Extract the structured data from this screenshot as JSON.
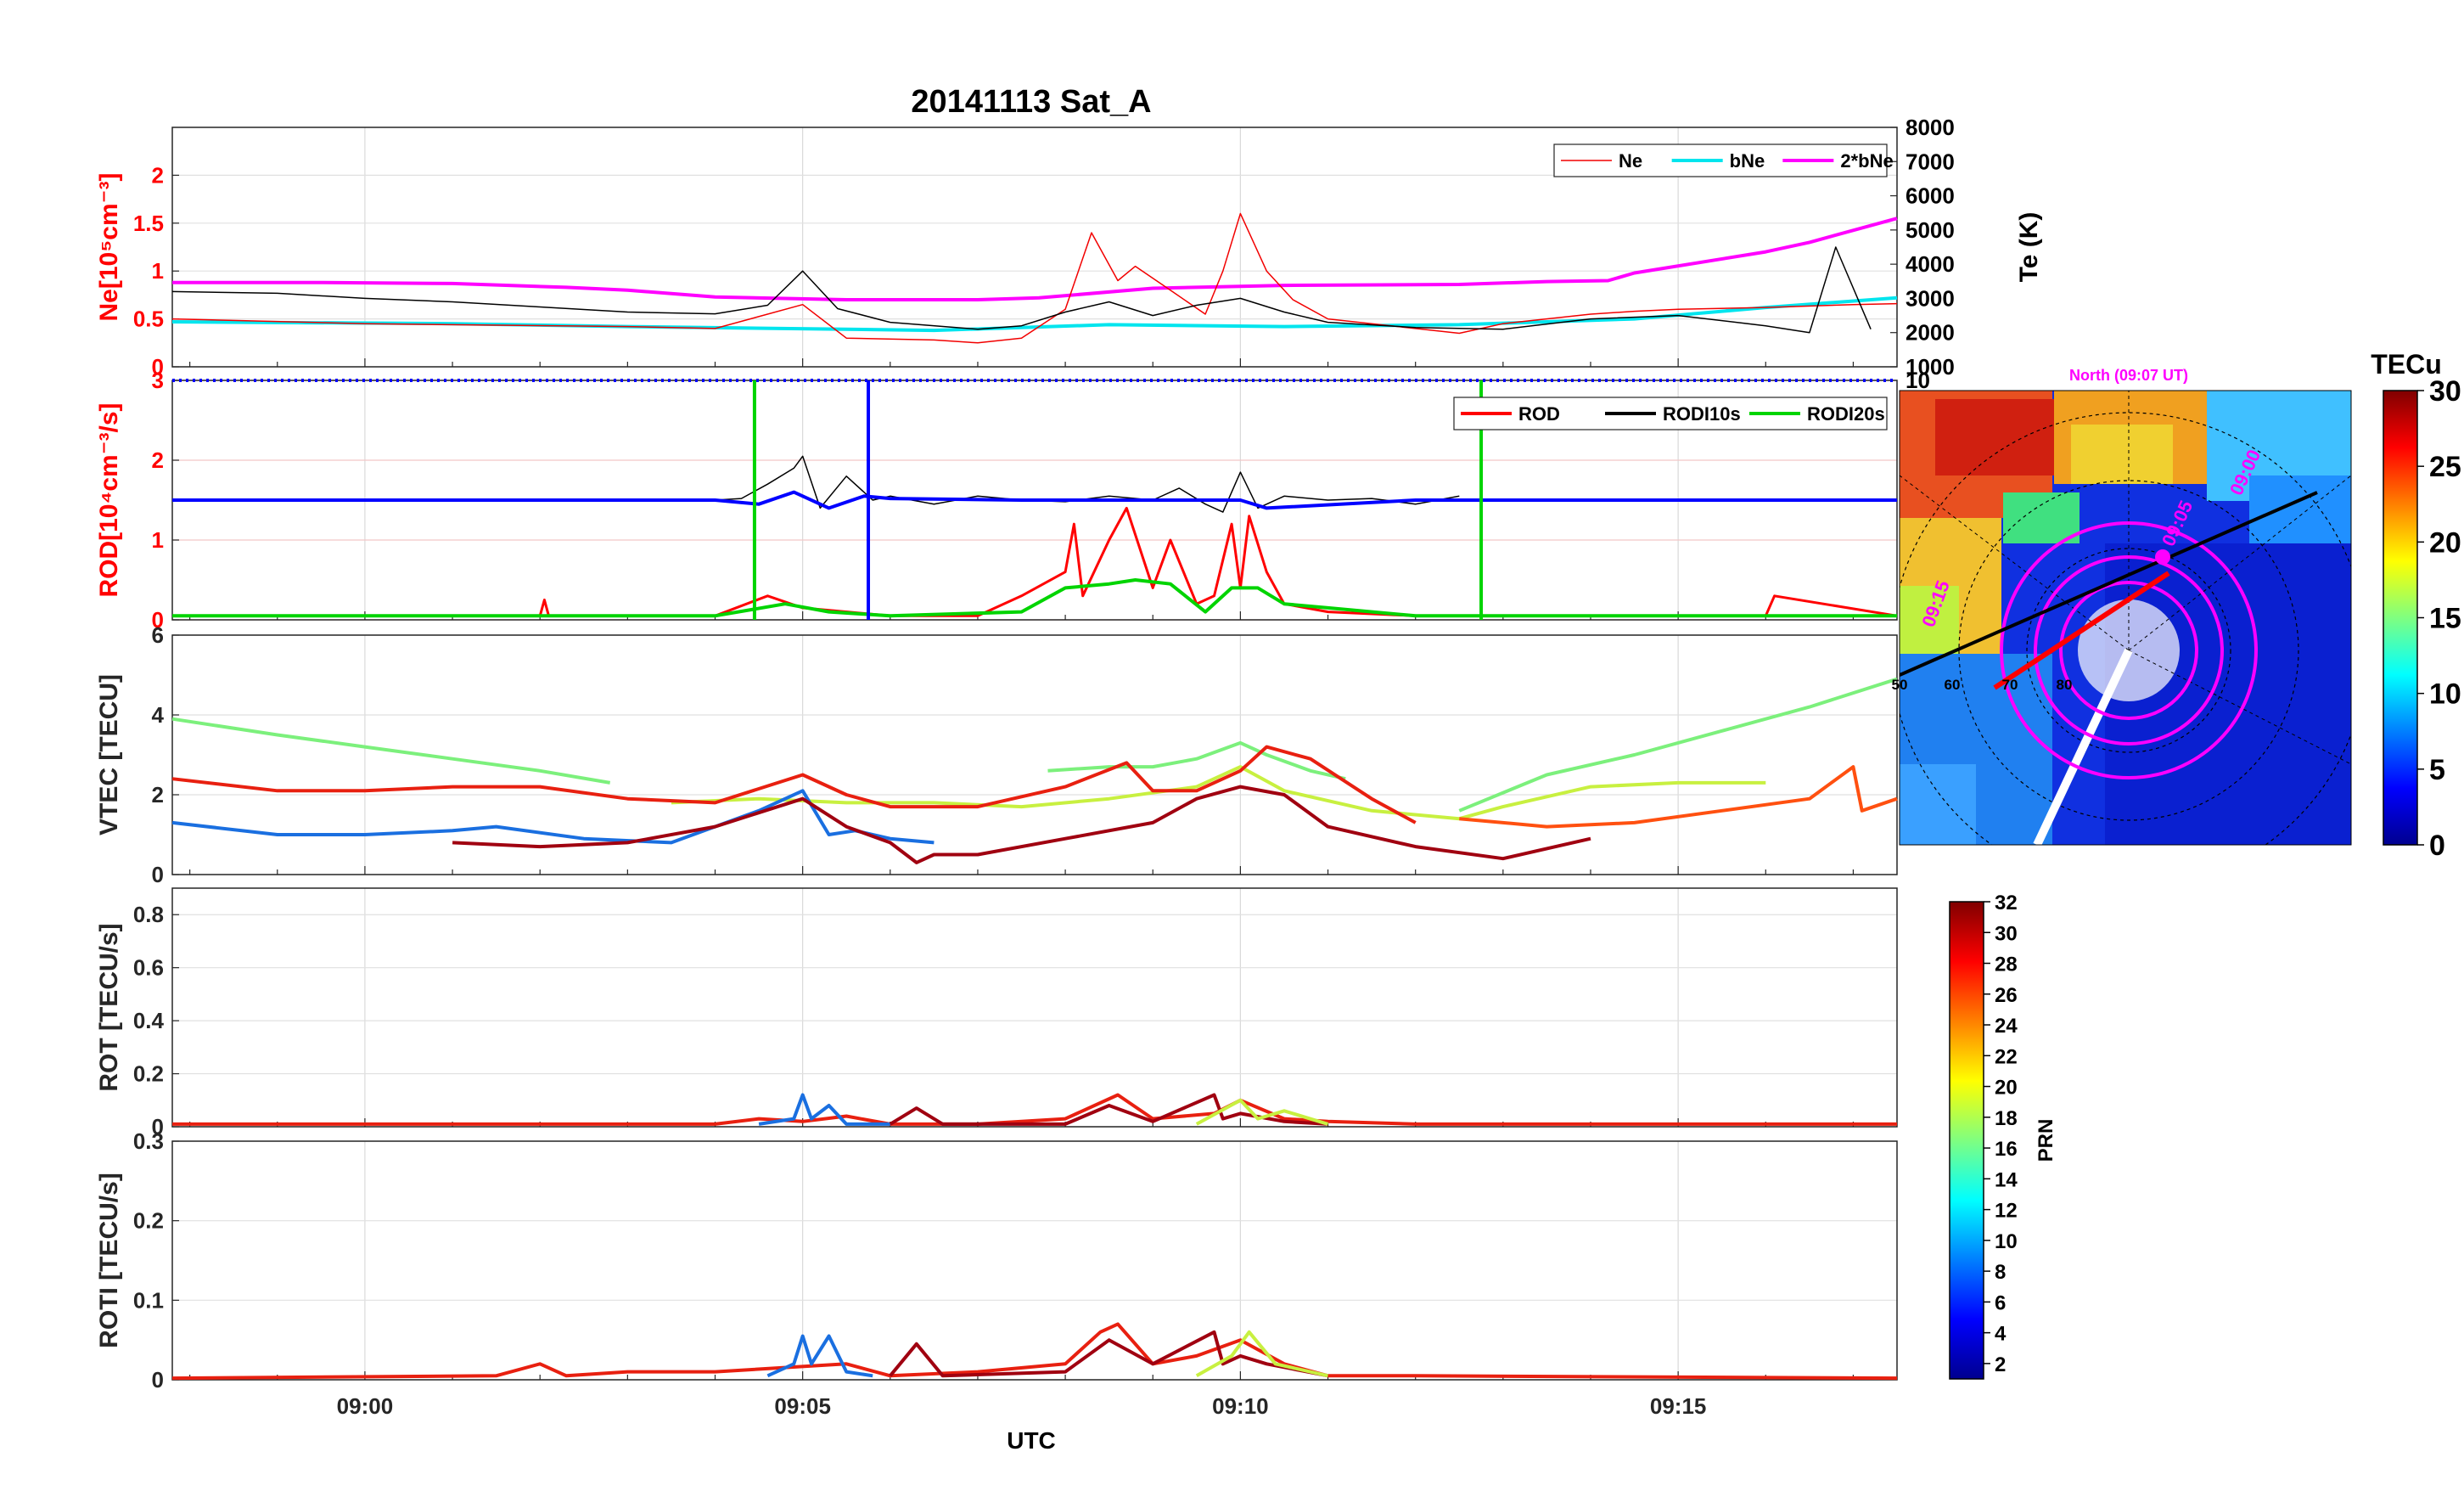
{
  "figure": {
    "title": "20141113  Sat_A",
    "xlabel": "UTC",
    "xticks": [
      "09:00",
      "09:05",
      "09:10",
      "09:15"
    ]
  },
  "colors": {
    "ne": "#f20000",
    "bne": "#00e5ee",
    "two_bne": "#ff00ff",
    "te": "#000000",
    "rod": "#ff0000",
    "rodi10": "#000000",
    "rodi20": "#00d400",
    "blue": "#0000ff"
  },
  "chart_data": [
    {
      "id": "ne",
      "type": "line",
      "ylabel": "Ne[10⁵cm⁻³]",
      "ylim": [
        0,
        2.5
      ],
      "yticks": [
        "0",
        "0.5",
        "1",
        "1.5",
        "2"
      ],
      "y2label": "Te (K)",
      "y2lim": [
        1000,
        8000
      ],
      "y2ticks": [
        "1000",
        "2000",
        "3000",
        "4000",
        "5000",
        "6000",
        "7000",
        "8000"
      ],
      "legend": [
        "Ne",
        "bNe",
        "2*bNe"
      ],
      "series": [
        {
          "name": "2*bNe",
          "x": [
            -2.2,
            -0.5,
            1.0,
            2.3,
            3.0,
            4.0,
            5.5,
            7.0,
            7.7,
            9.0,
            10.5,
            12.5,
            13.5,
            14.2,
            14.5,
            16.0,
            16.5,
            17.5
          ],
          "y": [
            0.88,
            0.88,
            0.87,
            0.83,
            0.8,
            0.73,
            0.7,
            0.7,
            0.72,
            0.82,
            0.85,
            0.86,
            0.89,
            0.9,
            0.98,
            1.2,
            1.3,
            1.55
          ]
        },
        {
          "name": "bNe",
          "x": [
            -2.2,
            1.0,
            3.0,
            6.5,
            8.5,
            10.5,
            12.5,
            14.5,
            16.0,
            17.5
          ],
          "y": [
            0.47,
            0.45,
            0.42,
            0.38,
            0.44,
            0.42,
            0.44,
            0.5,
            0.62,
            0.72
          ]
        },
        {
          "name": "Ne",
          "x": [
            -2.2,
            0.0,
            2.0,
            3.0,
            4.0,
            5.0,
            5.5,
            6.5,
            7.0,
            7.5,
            8.0,
            8.3,
            8.6,
            8.8,
            9.2,
            9.6,
            9.8,
            10.0,
            10.3,
            10.6,
            11.0,
            12.0,
            12.5,
            13.0,
            14.0,
            14.5,
            15.0,
            16.0,
            17.0,
            17.5
          ],
          "y": [
            0.5,
            0.45,
            0.43,
            0.42,
            0.4,
            0.65,
            0.3,
            0.28,
            0.25,
            0.3,
            0.6,
            1.4,
            0.9,
            1.05,
            0.8,
            0.55,
            1.0,
            1.6,
            1.0,
            0.7,
            0.5,
            0.4,
            0.35,
            0.45,
            0.55,
            0.58,
            0.6,
            0.62,
            0.65,
            0.66
          ]
        },
        {
          "name": "Te",
          "axis": "y2",
          "x": [
            -2.2,
            -1.0,
            0.0,
            1.0,
            2.0,
            3.0,
            4.0,
            4.6,
            5.0,
            5.4,
            6.0,
            7.0,
            7.5,
            8.0,
            8.5,
            9.0,
            9.5,
            10.0,
            10.5,
            11.0,
            12.0,
            13.0,
            14.0,
            15.0,
            16.0,
            16.5,
            16.8,
            17.2
          ],
          "y": [
            3200,
            3150,
            3000,
            2900,
            2750,
            2600,
            2550,
            2800,
            3800,
            2700,
            2300,
            2100,
            2200,
            2600,
            2900,
            2500,
            2800,
            3000,
            2600,
            2300,
            2150,
            2100,
            2400,
            2500,
            2200,
            2000,
            4500,
            2100
          ]
        }
      ]
    },
    {
      "id": "rod",
      "type": "line",
      "ylabel": "ROD[10⁴cm⁻³/s]",
      "ylim": [
        0,
        3
      ],
      "yticks": [
        "0",
        "1",
        "2",
        "3"
      ],
      "y2ticks": [
        "10"
      ],
      "legend": [
        "ROD",
        "RODI10s",
        "RODI20s"
      ],
      "spikes_x": [
        4.45,
        5.75,
        12.75
      ],
      "series": [
        {
          "name": "ROD",
          "x": [
            -2.2,
            2.0,
            2.05,
            2.1,
            4.0,
            4.6,
            5.0,
            6.0,
            7.0,
            7.5,
            8.0,
            8.1,
            8.2,
            8.5,
            8.7,
            9.0,
            9.2,
            9.5,
            9.7,
            9.9,
            10.0,
            10.1,
            10.3,
            10.5,
            11.0,
            12.0,
            16.0,
            16.1,
            17.5
          ],
          "y": [
            0.05,
            0.05,
            0.25,
            0.05,
            0.05,
            0.3,
            0.15,
            0.05,
            0.05,
            0.3,
            0.6,
            1.2,
            0.3,
            1.0,
            1.4,
            0.4,
            1.0,
            0.2,
            0.3,
            1.2,
            0.4,
            1.3,
            0.6,
            0.2,
            0.1,
            0.05,
            0.05,
            0.3,
            0.05
          ]
        },
        {
          "name": "RODI10s",
          "x": [
            4.0,
            4.3,
            4.6,
            4.9,
            5.0,
            5.2,
            5.5,
            5.8,
            6.0,
            6.5,
            7.0,
            7.5,
            8.0,
            8.5,
            9.0,
            9.3,
            9.6,
            9.8,
            10.0,
            10.2,
            10.5,
            11.0,
            11.5,
            12.0,
            12.5
          ],
          "y": [
            1.5,
            1.52,
            1.7,
            1.9,
            2.05,
            1.4,
            1.8,
            1.5,
            1.55,
            1.45,
            1.55,
            1.5,
            1.48,
            1.55,
            1.5,
            1.65,
            1.45,
            1.35,
            1.85,
            1.4,
            1.55,
            1.5,
            1.52,
            1.45,
            1.55
          ]
        },
        {
          "name": "RODI20s",
          "x": [
            -2.2,
            2.0,
            4.0,
            4.8,
            5.3,
            6.0,
            7.5,
            8.0,
            8.5,
            8.8,
            9.2,
            9.6,
            9.9,
            10.2,
            10.5,
            11.0,
            12.0,
            17.5
          ],
          "y": [
            0.05,
            0.05,
            0.05,
            0.2,
            0.1,
            0.05,
            0.1,
            0.4,
            0.45,
            0.5,
            0.45,
            0.1,
            0.4,
            0.4,
            0.2,
            0.15,
            0.05,
            0.05
          ]
        },
        {
          "name": "blue",
          "x": [
            -2.2,
            4.0,
            4.5,
            4.9,
            5.3,
            5.7,
            6.0,
            7.5,
            8.0,
            10.0,
            10.3,
            12.0,
            17.5
          ],
          "y": [
            1.5,
            1.5,
            1.45,
            1.6,
            1.4,
            1.55,
            1.52,
            1.5,
            1.5,
            1.5,
            1.4,
            1.5,
            1.5
          ]
        }
      ]
    },
    {
      "id": "vtec",
      "type": "line",
      "ylabel": "VTEC [TECU]",
      "ylim": [
        0,
        6
      ],
      "yticks": [
        "0",
        "2",
        "4",
        "6"
      ],
      "series": [
        {
          "name": "light-green",
          "color": "#7cf07c",
          "x": [
            -2.2,
            -1.0,
            0.0,
            1.0,
            2.0,
            2.8
          ],
          "y": [
            3.9,
            3.5,
            3.2,
            2.9,
            2.6,
            2.3
          ]
        },
        {
          "name": "light-green-2",
          "color": "#7cf07c",
          "x": [
            7.8,
            8.5,
            9.0,
            9.5,
            10.0,
            10.3,
            10.8,
            11.2
          ],
          "y": [
            2.6,
            2.7,
            2.7,
            2.9,
            3.3,
            3.0,
            2.6,
            2.4
          ]
        },
        {
          "name": "light-green-3",
          "color": "#7cf07c",
          "x": [
            12.5,
            13.5,
            14.5,
            15.5,
            16.5,
            17.5
          ],
          "y": [
            1.6,
            2.5,
            3.0,
            3.6,
            4.2,
            4.9
          ]
        },
        {
          "name": "yellow-green",
          "color": "#c8f040",
          "x": [
            3.5,
            4.5,
            5.5,
            6.5,
            7.5,
            8.5,
            9.5,
            10.0,
            10.5,
            11.5,
            12.5,
            13.0,
            14.0,
            15.0,
            16.0
          ],
          "y": [
            1.8,
            1.9,
            1.8,
            1.8,
            1.7,
            1.9,
            2.2,
            2.7,
            2.1,
            1.6,
            1.4,
            1.7,
            2.2,
            2.3,
            2.3
          ]
        },
        {
          "name": "red",
          "color": "#e82010",
          "x": [
            -2.2,
            -1.0,
            0.0,
            1.0,
            2.0,
            3.0,
            4.0,
            5.0,
            5.5,
            6.0,
            7.0,
            8.0,
            8.7,
            9.0,
            9.5,
            10.0,
            10.3,
            10.8,
            11.5,
            12.0
          ],
          "y": [
            2.4,
            2.1,
            2.1,
            2.2,
            2.2,
            1.9,
            1.8,
            2.5,
            2.0,
            1.7,
            1.7,
            2.2,
            2.8,
            2.1,
            2.1,
            2.6,
            3.2,
            2.9,
            1.9,
            1.3
          ]
        },
        {
          "name": "orange-red",
          "color": "#ff5010",
          "x": [
            12.5,
            13.5,
            14.5,
            15.5,
            16.5,
            17.0,
            17.1,
            17.5
          ],
          "y": [
            1.4,
            1.2,
            1.3,
            1.6,
            1.9,
            2.7,
            1.6,
            1.9
          ]
        },
        {
          "name": "blue",
          "color": "#1a6fe0",
          "x": [
            -2.2,
            -1.0,
            0.0,
            1.0,
            1.5,
            2.5,
            3.5,
            4.5,
            5.0,
            5.3,
            5.6,
            6.0,
            6.5
          ],
          "y": [
            1.3,
            1.0,
            1.0,
            1.1,
            1.2,
            0.9,
            0.8,
            1.6,
            2.1,
            1.0,
            1.1,
            0.9,
            0.8
          ]
        },
        {
          "name": "dark-red",
          "color": "#a00010",
          "x": [
            1.0,
            2.0,
            3.0,
            4.0,
            5.0,
            5.5,
            6.0,
            6.3,
            6.5,
            7.0,
            8.0,
            9.0,
            9.5,
            10.0,
            10.5,
            11.0,
            12.0,
            13.0,
            14.0
          ],
          "y": [
            0.8,
            0.7,
            0.8,
            1.2,
            1.9,
            1.2,
            0.8,
            0.3,
            0.5,
            0.5,
            0.9,
            1.3,
            1.9,
            2.2,
            2.0,
            1.2,
            0.7,
            0.4,
            0.9
          ]
        }
      ]
    },
    {
      "id": "rot",
      "type": "line",
      "ylabel": "ROT [TECU/s]",
      "ylim": [
        0,
        0.9
      ],
      "yticks": [
        "0",
        "0.2",
        "0.4",
        "0.6",
        "0.8"
      ],
      "series": [
        {
          "name": "red",
          "color": "#e82010",
          "x": [
            -2.2,
            4.0,
            4.5,
            5.0,
            5.5,
            6.0,
            7.0,
            8.0,
            8.6,
            9.0,
            9.7,
            10.0,
            10.5,
            11.0,
            12.0,
            17.5
          ],
          "y": [
            0.01,
            0.01,
            0.03,
            0.02,
            0.04,
            0.01,
            0.01,
            0.03,
            0.12,
            0.03,
            0.05,
            0.1,
            0.03,
            0.02,
            0.01,
            0.01
          ]
        },
        {
          "name": "blue",
          "color": "#1a6fe0",
          "x": [
            4.5,
            4.9,
            5.0,
            5.1,
            5.3,
            5.5,
            6.0
          ],
          "y": [
            0.01,
            0.03,
            0.12,
            0.03,
            0.08,
            0.01,
            0.01
          ]
        },
        {
          "name": "dark-red",
          "color": "#a00010",
          "x": [
            6.0,
            6.3,
            6.6,
            8.0,
            8.5,
            9.0,
            9.7,
            9.8,
            10.0,
            10.5,
            11.0
          ],
          "y": [
            0.01,
            0.07,
            0.01,
            0.01,
            0.08,
            0.02,
            0.12,
            0.03,
            0.05,
            0.02,
            0.01
          ]
        },
        {
          "name": "yellow-green",
          "color": "#c8f040",
          "x": [
            9.5,
            10.0,
            10.2,
            10.5,
            11.0
          ],
          "y": [
            0.01,
            0.1,
            0.03,
            0.06,
            0.01
          ]
        }
      ]
    },
    {
      "id": "roti",
      "type": "line",
      "ylabel": "ROTI [TECU/s]",
      "ylim": [
        0,
        0.3
      ],
      "yticks": [
        "0",
        "0.1",
        "0.2",
        "0.3"
      ],
      "series": [
        {
          "name": "red",
          "color": "#e82010",
          "x": [
            -2.2,
            1.5,
            2.0,
            2.3,
            3.0,
            4.0,
            5.5,
            6.0,
            7.0,
            8.0,
            8.4,
            8.6,
            9.0,
            9.5,
            10.0,
            10.5,
            11.0,
            12.0,
            17.5
          ],
          "y": [
            0.002,
            0.005,
            0.02,
            0.005,
            0.01,
            0.01,
            0.02,
            0.005,
            0.01,
            0.02,
            0.06,
            0.07,
            0.02,
            0.03,
            0.05,
            0.02,
            0.005,
            0.005,
            0.002
          ]
        },
        {
          "name": "blue",
          "color": "#1a6fe0",
          "x": [
            4.6,
            4.9,
            5.0,
            5.1,
            5.3,
            5.5,
            5.8
          ],
          "y": [
            0.005,
            0.02,
            0.055,
            0.02,
            0.055,
            0.01,
            0.005
          ]
        },
        {
          "name": "dark-red",
          "color": "#a00010",
          "x": [
            6.0,
            6.3,
            6.6,
            8.0,
            8.5,
            9.0,
            9.7,
            9.8,
            10.0,
            10.3,
            11.0
          ],
          "y": [
            0.005,
            0.045,
            0.005,
            0.01,
            0.05,
            0.02,
            0.06,
            0.02,
            0.03,
            0.02,
            0.005
          ]
        },
        {
          "name": "yellow-green",
          "color": "#c8f040",
          "x": [
            9.5,
            9.9,
            10.1,
            10.4,
            11.0
          ],
          "y": [
            0.005,
            0.03,
            0.06,
            0.02,
            0.005
          ]
        }
      ]
    }
  ],
  "polar_map": {
    "title": "North (09:07 UT)",
    "lat_labels": [
      "50",
      "60",
      "70",
      "80"
    ],
    "time_labels": [
      "09:15",
      "09:00",
      "09:05"
    ],
    "colorbar_label": "TECu",
    "colorbar_ticks": [
      "0",
      "5",
      "10",
      "15",
      "20",
      "25",
      "30"
    ]
  },
  "prn_colorbar": {
    "label": "PRN",
    "ticks": [
      "2",
      "4",
      "6",
      "8",
      "10",
      "12",
      "14",
      "16",
      "18",
      "20",
      "22",
      "24",
      "26",
      "28",
      "30",
      "32"
    ]
  }
}
